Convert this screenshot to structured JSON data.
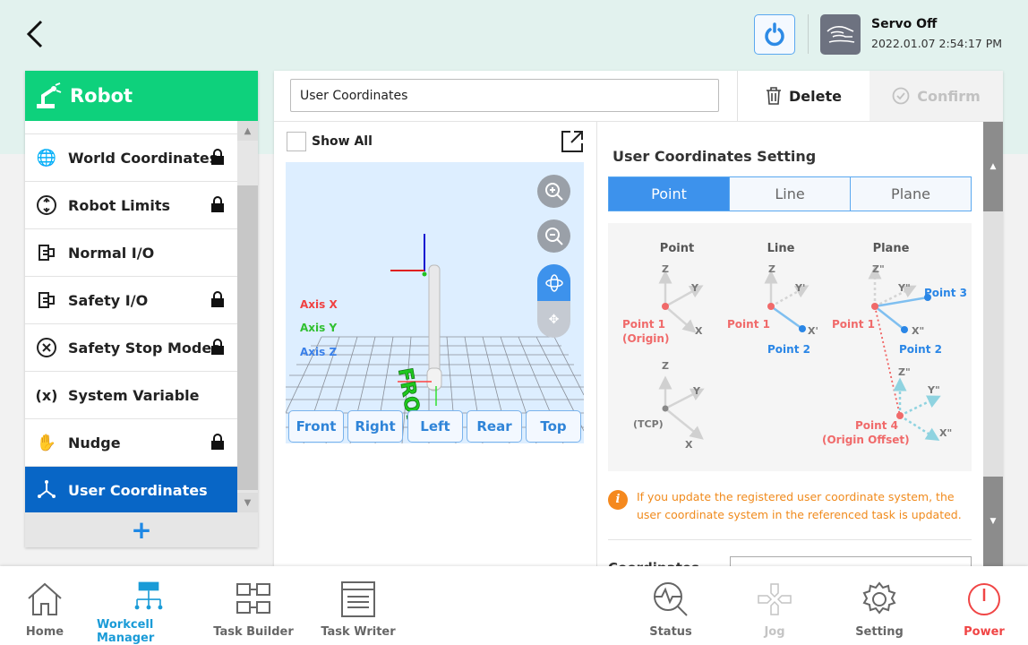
{
  "header": {
    "servo_status": "Servo Off",
    "datetime": "2022.01.07 2:54:17 PM"
  },
  "sidebar": {
    "title": "Robot",
    "items": [
      {
        "label": "World Coordinates",
        "icon": "globe-gear-icon",
        "locked": true
      },
      {
        "label": "Robot Limits",
        "icon": "limit-icon",
        "locked": true
      },
      {
        "label": "Normal I/O",
        "icon": "io-icon",
        "locked": false
      },
      {
        "label": "Safety I/O",
        "icon": "io-icon",
        "locked": true
      },
      {
        "label": "Safety Stop Modes",
        "icon": "stop-x-icon",
        "locked": true
      },
      {
        "label": "System Variable",
        "icon": "variable-icon",
        "locked": false
      },
      {
        "label": "Nudge",
        "icon": "hand-icon",
        "locked": true
      },
      {
        "label": "User Coordinates",
        "icon": "axes-icon",
        "locked": false,
        "selected": true
      }
    ],
    "add_label": "+"
  },
  "main": {
    "name_value": "User Coordinates",
    "delete_label": "Delete",
    "confirm_label": "Confirm",
    "show_all_label": "Show All",
    "show_all_checked": false,
    "viewer": {
      "axis_labels": [
        "Axis X",
        "Axis Y",
        "Axis Z"
      ],
      "floor_text": "FRONT",
      "view_buttons": [
        "Front",
        "Right",
        "Left",
        "Rear",
        "Top"
      ],
      "mode": "rotate"
    },
    "settings": {
      "title": "User Coordinates Setting",
      "tabs": [
        "Point",
        "Line",
        "Plane"
      ],
      "active_tab": "Point",
      "diagram": {
        "point_title": "Point",
        "line_title": "Line",
        "plane_title": "Plane",
        "point1": "Point 1",
        "origin": "(Origin)",
        "point2": "Point 2",
        "point3": "Point 3",
        "point4": "Point 4",
        "origin_offset": "(Origin Offset)",
        "tcp": "(TCP)",
        "ax_x": "X",
        "ax_y": "Y",
        "ax_z": "Z",
        "ax_x1": "X'",
        "ax_y1": "Y'",
        "ax_x2": "X\"",
        "ax_y2": "Y\"",
        "ax_z2": "Z\""
      },
      "info": "If you update the registered user coordinate system, the user coordinate system in the referenced task is updated.",
      "coord_label": "Coordinates"
    }
  },
  "nav": [
    {
      "label": "Home"
    },
    {
      "label": "Workcell Manager",
      "active": true
    },
    {
      "label": "Task Builder"
    },
    {
      "label": "Task Writer"
    },
    {
      "label": "Status"
    },
    {
      "label": "Jog",
      "disabled": true
    },
    {
      "label": "Setting"
    },
    {
      "label": "Power"
    }
  ],
  "colors": {
    "accent": "#3d92ec",
    "sidebar_header": "#0ed17c",
    "selected": "#0866c6",
    "warning": "#f08a1c",
    "power": "#f04545"
  }
}
